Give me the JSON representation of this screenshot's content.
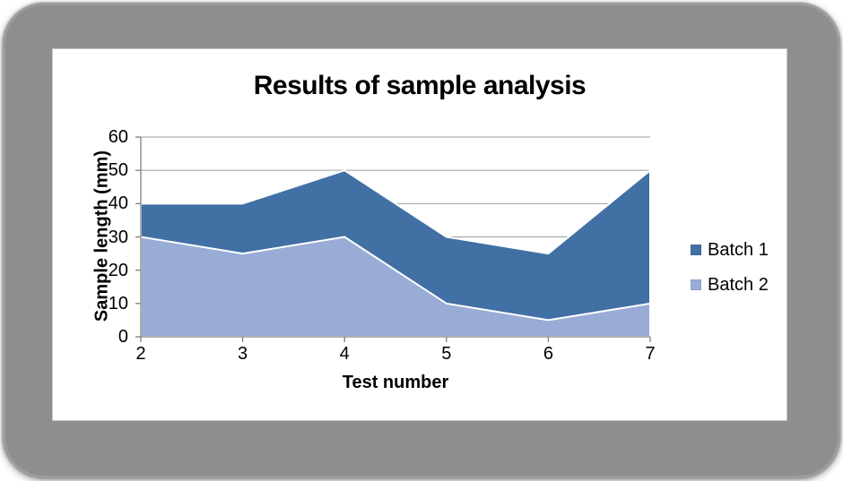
{
  "frame": {
    "background_color": "#8e8e8e",
    "card_color": "#ffffff"
  },
  "chart_data": {
    "type": "area",
    "title": "Results of sample analysis",
    "xlabel": "Test number",
    "ylabel": "Sample length (mm)",
    "x": [
      2,
      3,
      4,
      5,
      6,
      7
    ],
    "series": [
      {
        "name": "Batch 1",
        "color": "#4170a5",
        "values": [
          40,
          40,
          50,
          30,
          25,
          50
        ]
      },
      {
        "name": "Batch 2",
        "color": "#99acd6",
        "values": [
          30,
          25,
          30,
          10,
          5,
          10
        ]
      }
    ],
    "ylim": [
      0,
      60
    ],
    "yticks": [
      0,
      10,
      20,
      30,
      40,
      50,
      60
    ],
    "grid": true,
    "legend_position": "right",
    "gridline_color": "#9b9b9b",
    "axis_color": "#7f7f7f",
    "area_border_color": "#ffffff",
    "text_color": "#000000"
  }
}
